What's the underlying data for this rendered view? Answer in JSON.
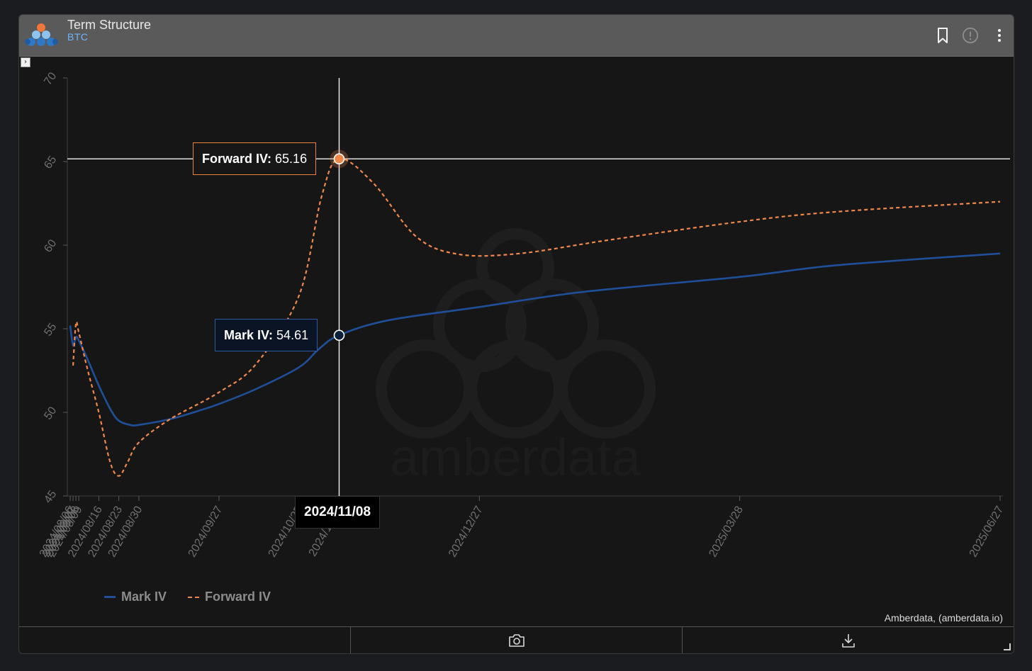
{
  "header": {
    "title": "Term Structure",
    "subtitle": "BTC",
    "icons": [
      "bookmark-icon",
      "alert-icon",
      "more-icon"
    ]
  },
  "chart_data": {
    "type": "line",
    "y_ticks": [
      "45",
      "50",
      "55",
      "60",
      "65",
      "70"
    ],
    "ylim": [
      45,
      70
    ],
    "x_tick_labels": [
      "2024/08/06",
      "2024/08/07",
      "2024/08/08",
      "2024/08/09",
      "2024/08/16",
      "2024/08/23",
      "2024/08/30",
      "2024/09/27",
      "2024/10/25",
      "2024/11/08",
      "2024/12/27",
      "2025/03/28",
      "2025/06/27"
    ],
    "xlim": [
      "2024/08/05",
      "2025/06/28"
    ],
    "grid": false,
    "legend_position": "bottom-left",
    "series": [
      {
        "name": "Mark IV",
        "color": "#1f4f99",
        "dash": "solid",
        "points": [
          [
            "2024/08/06",
            55.2
          ],
          [
            "2024/08/07",
            54.0
          ],
          [
            "2024/08/08",
            54.5
          ],
          [
            "2024/08/09",
            54.3
          ],
          [
            "2024/08/12",
            53.2
          ],
          [
            "2024/08/16",
            51.6
          ],
          [
            "2024/08/20",
            50.2
          ],
          [
            "2024/08/23",
            49.5
          ],
          [
            "2024/08/27",
            49.25
          ],
          [
            "2024/08/30",
            49.25
          ],
          [
            "2024/09/10",
            49.6
          ],
          [
            "2024/09/20",
            50.1
          ],
          [
            "2024/09/27",
            50.5
          ],
          [
            "2024/10/10",
            51.4
          ],
          [
            "2024/10/25",
            52.7
          ],
          [
            "2024/11/01",
            53.8
          ],
          [
            "2024/11/08",
            54.61
          ],
          [
            "2024/11/25",
            55.5
          ],
          [
            "2024/12/27",
            56.3
          ],
          [
            "2025/02/01",
            57.2
          ],
          [
            "2025/03/28",
            58.1
          ],
          [
            "2025/05/01",
            58.8
          ],
          [
            "2025/06/27",
            59.5
          ]
        ]
      },
      {
        "name": "Forward IV",
        "color": "#f0874a",
        "dash": "dashed",
        "points": [
          [
            "2024/08/07",
            52.8
          ],
          [
            "2024/08/08",
            55.3
          ],
          [
            "2024/08/09",
            54.8
          ],
          [
            "2024/08/12",
            52.6
          ],
          [
            "2024/08/16",
            50.0
          ],
          [
            "2024/08/20",
            47.0
          ],
          [
            "2024/08/23",
            46.2
          ],
          [
            "2024/08/26",
            47.0
          ],
          [
            "2024/08/30",
            48.2
          ],
          [
            "2024/09/10",
            49.6
          ],
          [
            "2024/09/27",
            51.2
          ],
          [
            "2024/10/10",
            52.9
          ],
          [
            "2024/10/25",
            57.0
          ],
          [
            "2024/11/02",
            63.0
          ],
          [
            "2024/11/08",
            65.16
          ],
          [
            "2024/11/20",
            63.7
          ],
          [
            "2024/12/05",
            60.5
          ],
          [
            "2024/12/20",
            59.45
          ],
          [
            "2025/01/10",
            59.5
          ],
          [
            "2025/02/10",
            60.3
          ],
          [
            "2025/03/28",
            61.4
          ],
          [
            "2025/05/01",
            62.0
          ],
          [
            "2025/06/27",
            62.6
          ]
        ]
      }
    ],
    "crosshair": {
      "x": "2024/11/08",
      "y": 65.16
    },
    "tooltips": {
      "forward_label": "Forward IV:",
      "forward_value": "65.16",
      "mark_label": "Mark IV:",
      "mark_value": "54.61",
      "date": "2024/11/08"
    },
    "watermark": "amberdata"
  },
  "legend": {
    "mark": "Mark IV",
    "forward": "Forward IV"
  },
  "credit": "Amberdata, (amberdata.io)",
  "footer": {
    "icons": [
      "camera-icon",
      "download-icon"
    ]
  }
}
